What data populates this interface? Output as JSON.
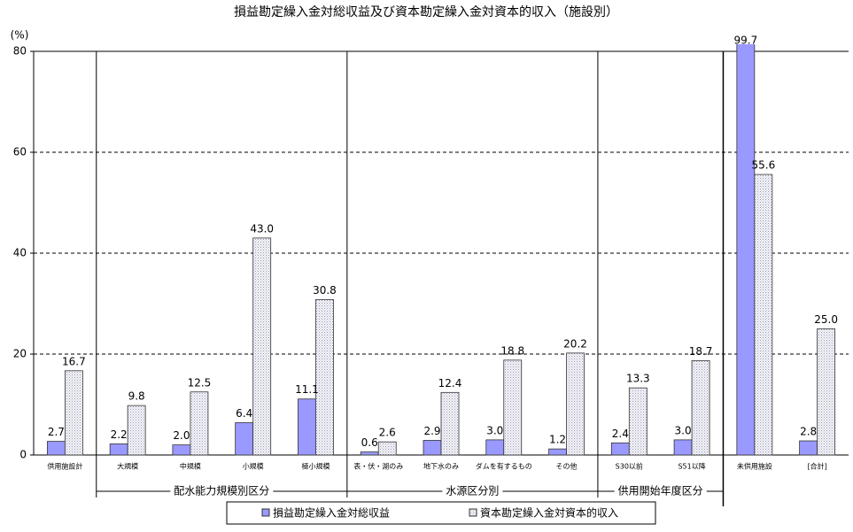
{
  "chart_data": {
    "type": "bar",
    "title": "損益勘定繰入金対総収益及び資本勘定繰入金対資本的収入（施設別）",
    "y_label": "(%)",
    "categories": [
      "供用施設計",
      "大規模",
      "中規模",
      "小規模",
      "極小規模",
      "表・伏・湖のみ",
      "地下水のみ",
      "ダムを有するもの",
      "その他",
      "S30以前",
      "S51以降",
      "未供用施設",
      "[合計]"
    ],
    "series": [
      {
        "name": "損益勘定繰入金対総収益",
        "color": "#9999ff",
        "values": [
          2.7,
          2.2,
          2.0,
          6.4,
          11.1,
          0.6,
          2.9,
          3.0,
          1.2,
          2.4,
          3.0,
          99.7,
          2.8
        ],
        "value_labels": [
          "2.7",
          "2.2",
          "2.0",
          "6.4",
          "11.1",
          "0.6",
          "2.9",
          "3.0",
          "1.2",
          "2.4",
          "3.0",
          "99.7",
          "2.8"
        ]
      },
      {
        "name": "資本勘定繰入金対資本的収入",
        "color": "#e4e4f0",
        "values": [
          16.7,
          9.8,
          12.5,
          43.0,
          30.8,
          2.6,
          12.4,
          18.8,
          20.2,
          13.3,
          18.7,
          55.6,
          25.0
        ],
        "value_labels": [
          "16.7",
          "9.8",
          "12.5",
          "43.0",
          "30.8",
          "2.6",
          "12.4",
          "18.8",
          "20.2",
          "13.3",
          "18.7",
          "55.6",
          "25.0"
        ]
      }
    ],
    "groups": [
      {
        "label": "配水能力規模別区分",
        "from": 1,
        "to": 4
      },
      {
        "label": "水源区分別",
        "from": 5,
        "to": 8
      },
      {
        "label": "供用開始年度区分",
        "from": 9,
        "to": 10
      }
    ],
    "ylim": [
      0,
      80
    ],
    "yticks": [
      0,
      20,
      40,
      60,
      80
    ],
    "grid": true
  }
}
